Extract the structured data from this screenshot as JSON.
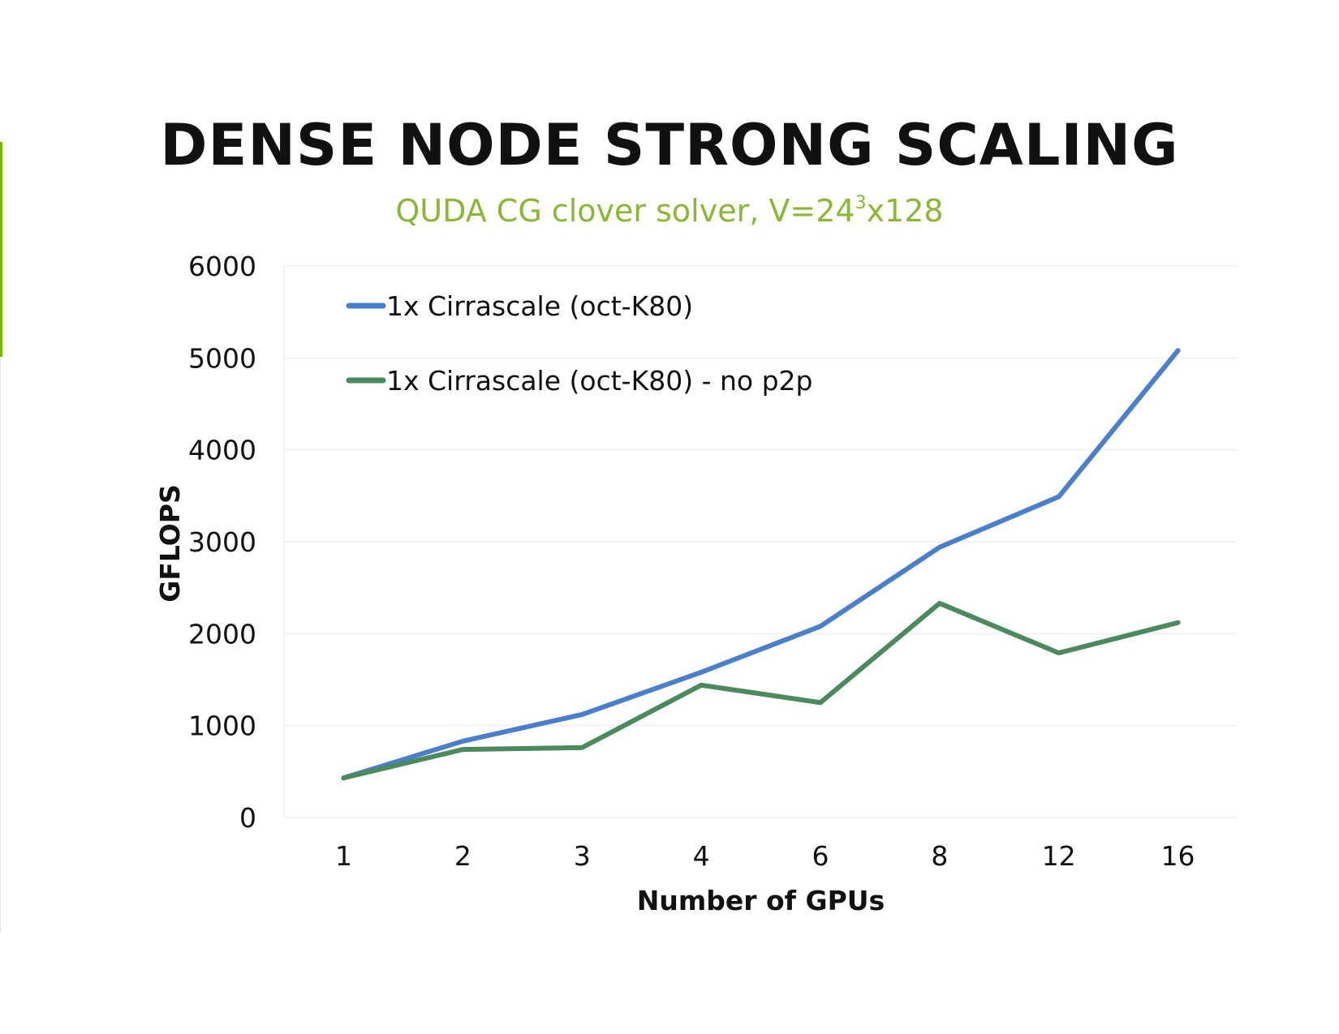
{
  "chart_data": {
    "type": "line",
    "title": "DENSE NODE STRONG SCALING",
    "subtitle": {
      "prefix": "QUDA CG clover solver, V=24",
      "superscript": "3",
      "suffix": "x128"
    },
    "xlabel": "Number of GPUs",
    "ylabel": "GFLOPS",
    "categories": [
      "1",
      "2",
      "3",
      "4",
      "6",
      "8",
      "12",
      "16"
    ],
    "ylim": [
      0,
      6000
    ],
    "yticks": [
      0,
      1000,
      2000,
      3000,
      4000,
      5000,
      6000
    ],
    "grid": true,
    "legend_position": "top-left",
    "series": [
      {
        "name": "1x Cirrascale (oct-K80)",
        "color": "#4a7fcb",
        "values": [
          430,
          830,
          1120,
          1580,
          2080,
          2940,
          3490,
          5080
        ]
      },
      {
        "name": "1x Cirrascale (oct-K80) - no p2p",
        "color": "#4a8a5c",
        "values": [
          430,
          740,
          760,
          1440,
          1250,
          2330,
          1790,
          2120
        ]
      }
    ]
  }
}
